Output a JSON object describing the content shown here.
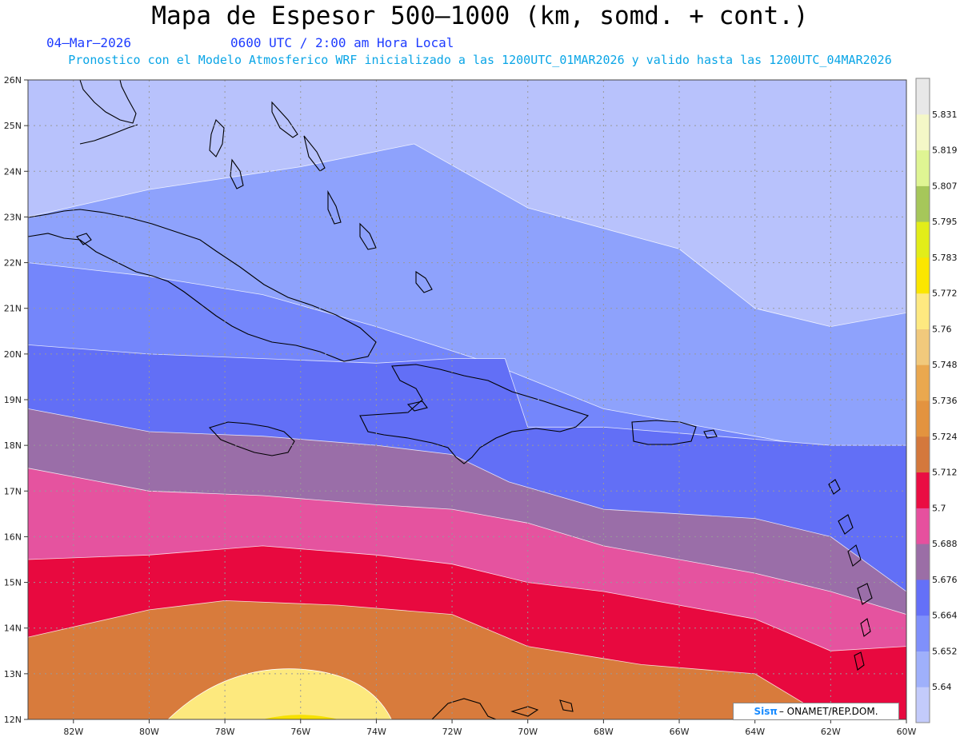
{
  "header": {
    "title": "Mapa de Espesor 500–1000 (km, somd. + cont.)",
    "date": "04–Mar–2026",
    "time": "0600 UTC / 2:00 am Hora Local",
    "model_info": "Pronostico con el Modelo Atmosferico WRF inicializado a las 1200UTC_01MAR2026 y valido hasta las  1200UTC_04MAR2026"
  },
  "map": {
    "lon_range": [
      -83.2,
      -60
    ],
    "lat_range": [
      12,
      26
    ],
    "lon_ticks": [
      "82W",
      "80W",
      "78W",
      "76W",
      "74W",
      "72W",
      "70W",
      "68W",
      "66W",
      "64W",
      "62W",
      "60W"
    ],
    "lat_ticks": [
      "12N",
      "13N",
      "14N",
      "15N",
      "16N",
      "17N",
      "18N",
      "19N",
      "20N",
      "21N",
      "22N",
      "23N",
      "24N",
      "25N",
      "26N"
    ],
    "grid": true
  },
  "colorbar": {
    "labels": [
      "5.64",
      "5.652",
      "5.664",
      "5.676",
      "5.688",
      "5.7",
      "5.712",
      "5.724",
      "5.736",
      "5.748",
      "5.76",
      "5.772",
      "5.783",
      "5.795",
      "5.807",
      "5.819",
      "5.831"
    ],
    "colors": [
      "#c3cbfb",
      "#9fb0fb",
      "#7f90fb",
      "#6470f8",
      "#9b6ea6",
      "#e6509e",
      "#ea0d43",
      "#d4783c",
      "#e3933f",
      "#eaa84f",
      "#f1c97c",
      "#fee980",
      "#fbe600",
      "#e2ed19",
      "#a6c75a",
      "#dff593",
      "#f4f7c7",
      "#e8e8e8"
    ]
  },
  "bands": {
    "colors": [
      "#b8c2fc",
      "#8ea2fc",
      "#7486fb",
      "#626ff6",
      "#9a6ea8",
      "#e5539f",
      "#e8093f",
      "#d87b3c",
      "#e4923f",
      "#ecab54",
      "#f0c877",
      "#fde97e",
      "#f6e000"
    ],
    "boundaries": [
      [
        [
          -83.2,
          23.0
        ],
        [
          -80,
          23.6
        ],
        [
          -76,
          24.1
        ],
        [
          -73,
          24.6
        ],
        [
          -70,
          23.2
        ],
        [
          -66,
          22.3
        ],
        [
          -64,
          21.0
        ],
        [
          -62,
          20.6
        ],
        [
          -60,
          20.9
        ]
      ],
      [
        [
          -83.2,
          22.0
        ],
        [
          -80,
          21.7
        ],
        [
          -77,
          21.3
        ],
        [
          -74,
          20.6
        ],
        [
          -71,
          19.8
        ],
        [
          -68,
          18.8
        ],
        [
          -64,
          18.2
        ],
        [
          -62,
          17.9
        ],
        [
          -60,
          17.6
        ]
      ],
      [
        [
          -83.2,
          20.2
        ],
        [
          -80,
          20.0
        ],
        [
          -77,
          19.9
        ],
        [
          -74,
          19.8
        ],
        [
          -72,
          19.9
        ],
        [
          -70.6,
          19.9
        ],
        [
          -70,
          18.4
        ],
        [
          -68,
          18.4
        ],
        [
          -65,
          18.2
        ],
        [
          -62,
          18.0
        ],
        [
          -60,
          18.0
        ]
      ],
      [
        [
          -83.2,
          18.8
        ],
        [
          -80,
          18.3
        ],
        [
          -77,
          18.2
        ],
        [
          -74,
          18.0
        ],
        [
          -72,
          17.8
        ],
        [
          -70.5,
          17.2
        ],
        [
          -68,
          16.6
        ],
        [
          -64,
          16.4
        ],
        [
          -62,
          16.0
        ],
        [
          -60,
          14.8
        ]
      ],
      [
        [
          -83.2,
          17.5
        ],
        [
          -80,
          17.0
        ],
        [
          -77,
          16.9
        ],
        [
          -74,
          16.7
        ],
        [
          -72,
          16.6
        ],
        [
          -70,
          16.3
        ],
        [
          -68,
          15.8
        ],
        [
          -64,
          15.2
        ],
        [
          -62,
          14.8
        ],
        [
          -60,
          14.3
        ]
      ],
      [
        [
          -83.2,
          15.5
        ],
        [
          -80,
          15.6
        ],
        [
          -77,
          15.8
        ],
        [
          -74,
          15.6
        ],
        [
          -72,
          15.4
        ],
        [
          -70,
          15.0
        ],
        [
          -68,
          14.8
        ],
        [
          -64,
          14.2
        ],
        [
          -62,
          13.5
        ],
        [
          -60,
          13.6
        ]
      ],
      [
        [
          -83.2,
          13.8
        ],
        [
          -80,
          14.4
        ],
        [
          -78,
          14.6
        ],
        [
          -75,
          14.5
        ],
        [
          -72,
          14.3
        ],
        [
          -70,
          13.6
        ],
        [
          -67,
          13.2
        ],
        [
          -64,
          13.0
        ],
        [
          -62,
          12.0
        ],
        [
          -60,
          12.0
        ]
      ]
    ]
  },
  "credit": {
    "brand": "Sisπ",
    "text": "– ONAMET/REP.DOM."
  }
}
